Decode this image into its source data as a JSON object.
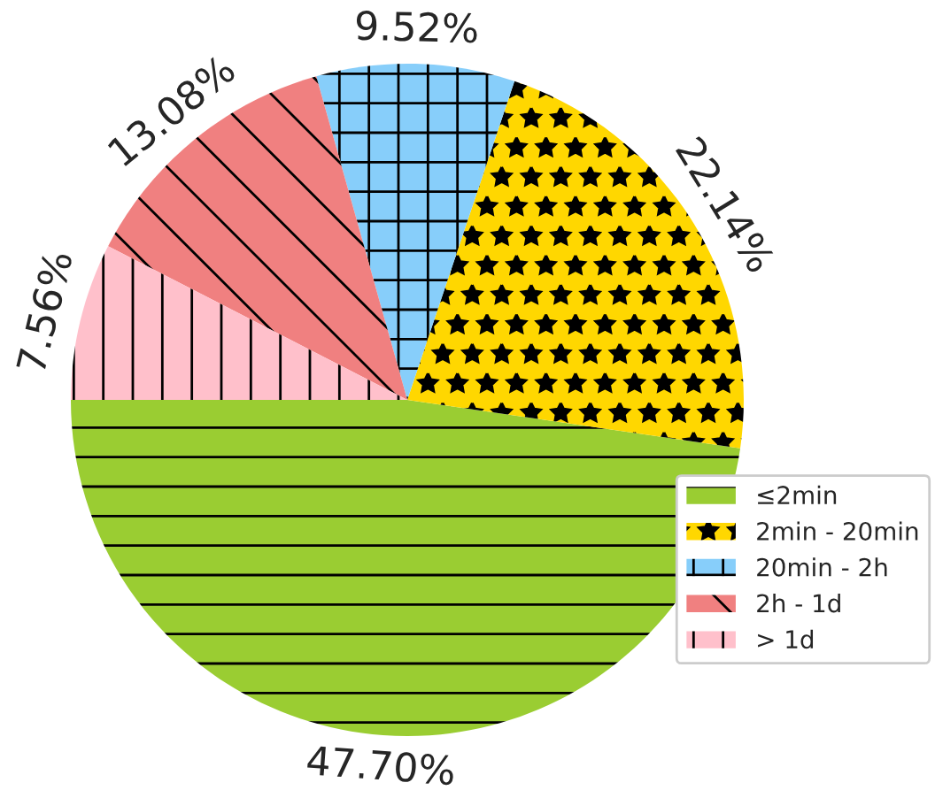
{
  "chart_data": {
    "type": "pie",
    "categories": [
      "≤2min",
      "2min - 20min",
      "20min - 2h",
      "2h - 1d",
      "> 1d"
    ],
    "values": [
      47.7,
      22.14,
      9.52,
      13.08,
      7.56
    ],
    "value_labels": [
      "47.70%",
      "22.14%",
      "9.52%",
      "13.08%",
      "7.56%"
    ],
    "colors": [
      "#9acd32",
      "#ffd700",
      "#87cefa",
      "#f08080",
      "#ffc0cb"
    ],
    "legend": "bottom right"
  }
}
